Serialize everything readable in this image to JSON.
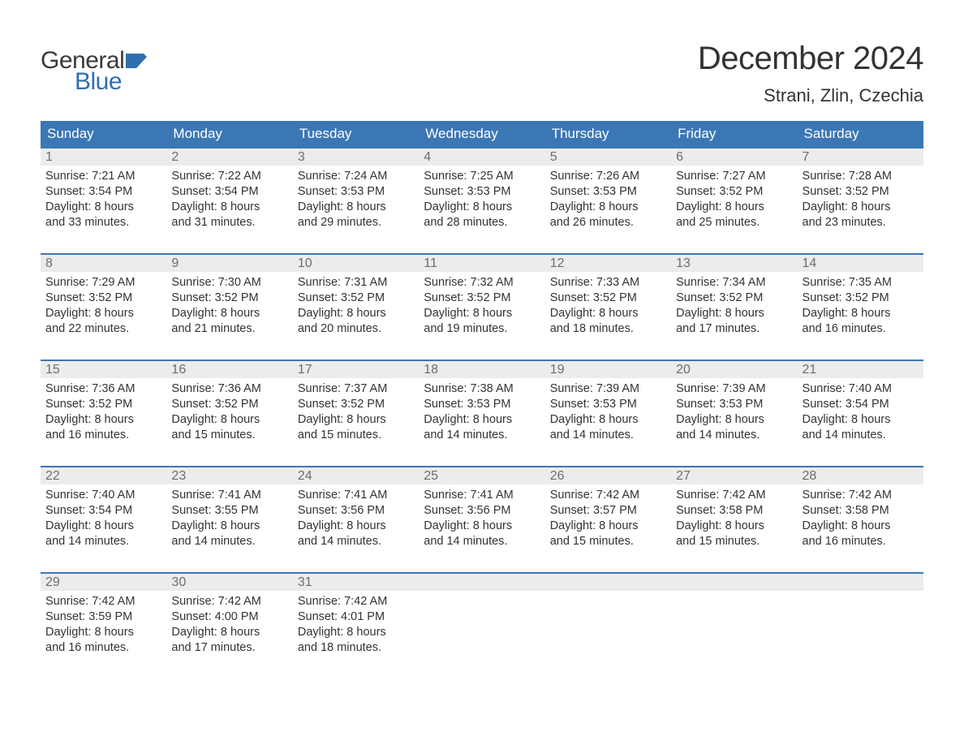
{
  "brand": {
    "word1": "General",
    "word2": "Blue",
    "word1_color": "#3a3a3a",
    "word2_color": "#2f6fb0"
  },
  "title": "December 2024",
  "location": "Strani, Zlin, Czechia",
  "colors": {
    "header_bg": "#3b77b5",
    "header_text": "#ffffff",
    "daynum_bg": "#ececec",
    "daynum_text": "#6d6d6d",
    "body_text": "#333333",
    "row_border": "#3b77b5",
    "page_bg": "#ffffff"
  },
  "typography": {
    "title_fontsize": 40,
    "location_fontsize": 22,
    "dayheader_fontsize": 17,
    "daynum_fontsize": 16,
    "cell_fontsize": 14.5
  },
  "day_names": [
    "Sunday",
    "Monday",
    "Tuesday",
    "Wednesday",
    "Thursday",
    "Friday",
    "Saturday"
  ],
  "labels": {
    "sunrise": "Sunrise:",
    "sunset": "Sunset:",
    "daylight": "Daylight:"
  },
  "weeks": [
    [
      {
        "num": "1",
        "sunrise": "7:21 AM",
        "sunset": "3:54 PM",
        "daylight1": "8 hours",
        "daylight2": "and 33 minutes."
      },
      {
        "num": "2",
        "sunrise": "7:22 AM",
        "sunset": "3:54 PM",
        "daylight1": "8 hours",
        "daylight2": "and 31 minutes."
      },
      {
        "num": "3",
        "sunrise": "7:24 AM",
        "sunset": "3:53 PM",
        "daylight1": "8 hours",
        "daylight2": "and 29 minutes."
      },
      {
        "num": "4",
        "sunrise": "7:25 AM",
        "sunset": "3:53 PM",
        "daylight1": "8 hours",
        "daylight2": "and 28 minutes."
      },
      {
        "num": "5",
        "sunrise": "7:26 AM",
        "sunset": "3:53 PM",
        "daylight1": "8 hours",
        "daylight2": "and 26 minutes."
      },
      {
        "num": "6",
        "sunrise": "7:27 AM",
        "sunset": "3:52 PM",
        "daylight1": "8 hours",
        "daylight2": "and 25 minutes."
      },
      {
        "num": "7",
        "sunrise": "7:28 AM",
        "sunset": "3:52 PM",
        "daylight1": "8 hours",
        "daylight2": "and 23 minutes."
      }
    ],
    [
      {
        "num": "8",
        "sunrise": "7:29 AM",
        "sunset": "3:52 PM",
        "daylight1": "8 hours",
        "daylight2": "and 22 minutes."
      },
      {
        "num": "9",
        "sunrise": "7:30 AM",
        "sunset": "3:52 PM",
        "daylight1": "8 hours",
        "daylight2": "and 21 minutes."
      },
      {
        "num": "10",
        "sunrise": "7:31 AM",
        "sunset": "3:52 PM",
        "daylight1": "8 hours",
        "daylight2": "and 20 minutes."
      },
      {
        "num": "11",
        "sunrise": "7:32 AM",
        "sunset": "3:52 PM",
        "daylight1": "8 hours",
        "daylight2": "and 19 minutes."
      },
      {
        "num": "12",
        "sunrise": "7:33 AM",
        "sunset": "3:52 PM",
        "daylight1": "8 hours",
        "daylight2": "and 18 minutes."
      },
      {
        "num": "13",
        "sunrise": "7:34 AM",
        "sunset": "3:52 PM",
        "daylight1": "8 hours",
        "daylight2": "and 17 minutes."
      },
      {
        "num": "14",
        "sunrise": "7:35 AM",
        "sunset": "3:52 PM",
        "daylight1": "8 hours",
        "daylight2": "and 16 minutes."
      }
    ],
    [
      {
        "num": "15",
        "sunrise": "7:36 AM",
        "sunset": "3:52 PM",
        "daylight1": "8 hours",
        "daylight2": "and 16 minutes."
      },
      {
        "num": "16",
        "sunrise": "7:36 AM",
        "sunset": "3:52 PM",
        "daylight1": "8 hours",
        "daylight2": "and 15 minutes."
      },
      {
        "num": "17",
        "sunrise": "7:37 AM",
        "sunset": "3:52 PM",
        "daylight1": "8 hours",
        "daylight2": "and 15 minutes."
      },
      {
        "num": "18",
        "sunrise": "7:38 AM",
        "sunset": "3:53 PM",
        "daylight1": "8 hours",
        "daylight2": "and 14 minutes."
      },
      {
        "num": "19",
        "sunrise": "7:39 AM",
        "sunset": "3:53 PM",
        "daylight1": "8 hours",
        "daylight2": "and 14 minutes."
      },
      {
        "num": "20",
        "sunrise": "7:39 AM",
        "sunset": "3:53 PM",
        "daylight1": "8 hours",
        "daylight2": "and 14 minutes."
      },
      {
        "num": "21",
        "sunrise": "7:40 AM",
        "sunset": "3:54 PM",
        "daylight1": "8 hours",
        "daylight2": "and 14 minutes."
      }
    ],
    [
      {
        "num": "22",
        "sunrise": "7:40 AM",
        "sunset": "3:54 PM",
        "daylight1": "8 hours",
        "daylight2": "and 14 minutes."
      },
      {
        "num": "23",
        "sunrise": "7:41 AM",
        "sunset": "3:55 PM",
        "daylight1": "8 hours",
        "daylight2": "and 14 minutes."
      },
      {
        "num": "24",
        "sunrise": "7:41 AM",
        "sunset": "3:56 PM",
        "daylight1": "8 hours",
        "daylight2": "and 14 minutes."
      },
      {
        "num": "25",
        "sunrise": "7:41 AM",
        "sunset": "3:56 PM",
        "daylight1": "8 hours",
        "daylight2": "and 14 minutes."
      },
      {
        "num": "26",
        "sunrise": "7:42 AM",
        "sunset": "3:57 PM",
        "daylight1": "8 hours",
        "daylight2": "and 15 minutes."
      },
      {
        "num": "27",
        "sunrise": "7:42 AM",
        "sunset": "3:58 PM",
        "daylight1": "8 hours",
        "daylight2": "and 15 minutes."
      },
      {
        "num": "28",
        "sunrise": "7:42 AM",
        "sunset": "3:58 PM",
        "daylight1": "8 hours",
        "daylight2": "and 16 minutes."
      }
    ],
    [
      {
        "num": "29",
        "sunrise": "7:42 AM",
        "sunset": "3:59 PM",
        "daylight1": "8 hours",
        "daylight2": "and 16 minutes."
      },
      {
        "num": "30",
        "sunrise": "7:42 AM",
        "sunset": "4:00 PM",
        "daylight1": "8 hours",
        "daylight2": "and 17 minutes."
      },
      {
        "num": "31",
        "sunrise": "7:42 AM",
        "sunset": "4:01 PM",
        "daylight1": "8 hours",
        "daylight2": "and 18 minutes."
      },
      null,
      null,
      null,
      null
    ]
  ]
}
